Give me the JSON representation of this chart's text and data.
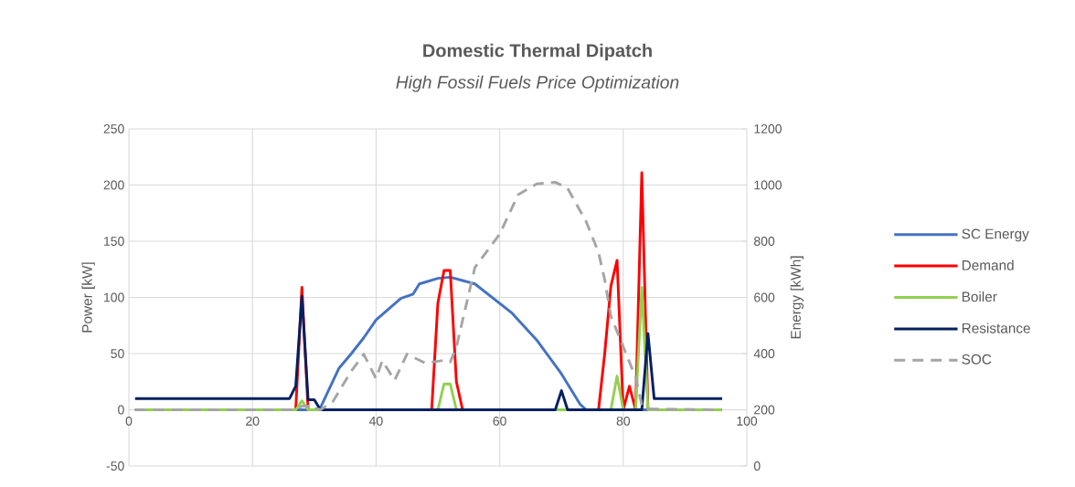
{
  "chart_data": {
    "type": "line",
    "title": "Domestic Thermal Dipatch",
    "subtitle": "High Fossil Fuels Price Optimization",
    "ylabel": "Power [kW]",
    "y2label": "Energy [kWh]",
    "xlim": [
      0,
      100
    ],
    "xticks": [
      0,
      20,
      40,
      60,
      80,
      100
    ],
    "ylim": [
      -50,
      250
    ],
    "yticks": [
      -50,
      0,
      50,
      100,
      150,
      200,
      250
    ],
    "y2lim": [
      0,
      1200
    ],
    "y2ticks": [
      0,
      200,
      400,
      600,
      800,
      1000,
      1200
    ],
    "grid": true,
    "legend": "right",
    "marker": "none",
    "series": [
      {
        "name": "SC Energy",
        "color": "#4472c4",
        "x": [
          1,
          30,
          31,
          34,
          36,
          38,
          40,
          44,
          46,
          47,
          50,
          52,
          56,
          62,
          66,
          70,
          73,
          74,
          96
        ],
        "values": [
          0,
          0,
          2,
          37,
          50,
          64,
          80,
          99,
          103,
          112,
          117,
          118,
          112,
          86,
          62,
          32,
          5,
          0,
          0
        ]
      },
      {
        "name": "Demand",
        "color": "#ff0000",
        "x": [
          1,
          27,
          28,
          29,
          49,
          50,
          51,
          52,
          53,
          54,
          76,
          77,
          78,
          79,
          80,
          81,
          82,
          83,
          84,
          96
        ],
        "values": [
          0,
          0,
          109,
          0,
          0,
          95,
          124,
          124,
          25,
          0,
          0,
          50,
          110,
          133,
          0,
          21,
          0,
          211,
          0,
          0
        ]
      },
      {
        "name": "Boiler",
        "color": "#92d050",
        "x": [
          1,
          27,
          28,
          29,
          50,
          51,
          52,
          53,
          78,
          79,
          80,
          82,
          83,
          84,
          96
        ],
        "values": [
          0,
          0,
          8,
          0,
          0,
          23,
          23,
          0,
          0,
          30,
          0,
          0,
          109,
          0,
          0
        ]
      },
      {
        "name": "Resistance",
        "color": "#002060",
        "x": [
          1,
          26,
          27,
          28,
          29,
          30,
          31,
          69,
          70,
          71,
          83,
          84,
          85,
          96
        ],
        "values": [
          10,
          10,
          21,
          101,
          9,
          9,
          0,
          0,
          17,
          0,
          0,
          68,
          10,
          10
        ]
      },
      {
        "name": "SOC",
        "color": "#a5a5a5",
        "axis": "y2",
        "line_style": "dashed",
        "x": [
          1,
          27,
          28,
          29,
          31,
          33,
          36,
          38,
          40,
          41,
          43,
          45,
          48,
          51,
          52,
          53,
          56,
          60,
          63,
          66,
          69,
          71,
          74,
          76,
          77,
          78,
          80,
          82,
          83,
          84,
          96
        ],
        "values": [
          200,
          200,
          213,
          213,
          200,
          229,
          338,
          398,
          311,
          375,
          305,
          398,
          366,
          376,
          370,
          424,
          707,
          825,
          966,
          1004,
          1010,
          988,
          870,
          760,
          663,
          533,
          424,
          316,
          218,
          203,
          200
        ]
      }
    ]
  }
}
